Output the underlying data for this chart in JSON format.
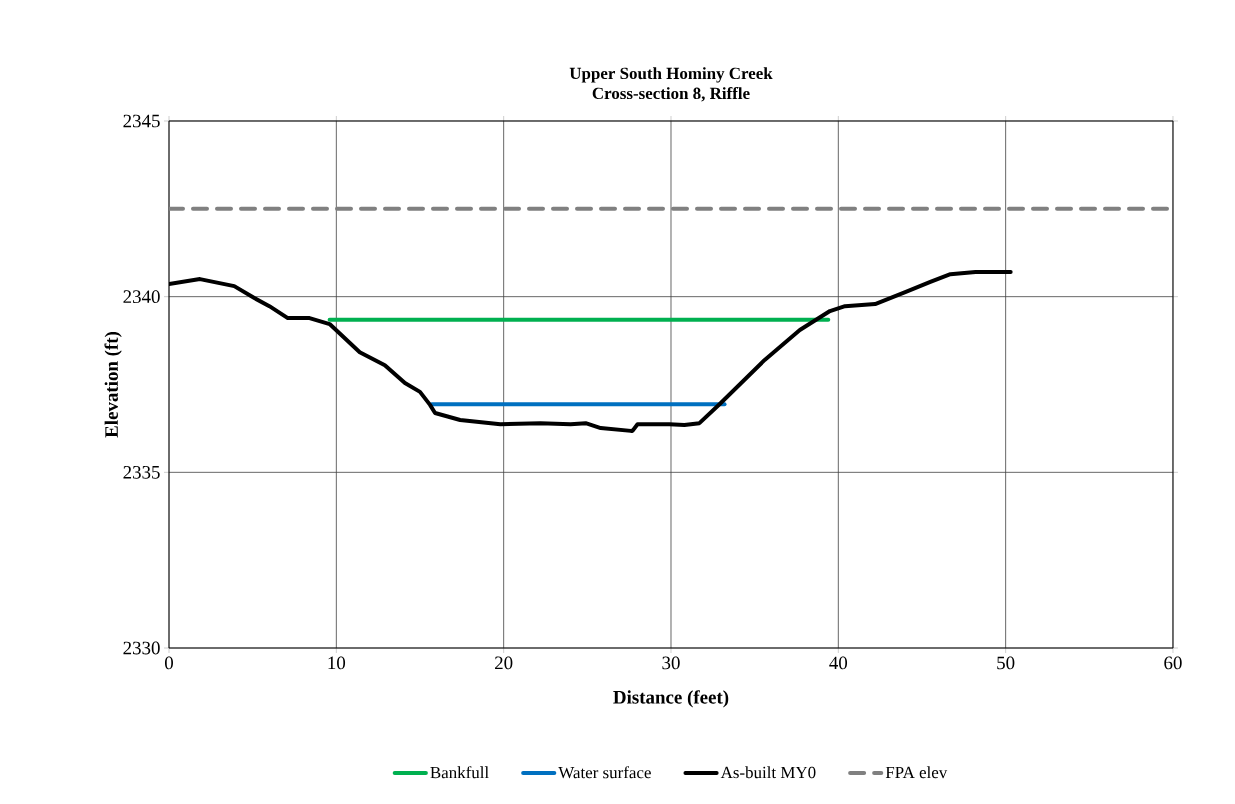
{
  "chart_data": {
    "type": "line",
    "title": "Upper South Hominy Creek",
    "subtitle": "Cross-section 8, Riffle",
    "xlabel": "Distance (feet)",
    "ylabel": "Elevation (ft)",
    "xlim": [
      0,
      60
    ],
    "xticks": [
      0,
      10,
      20,
      30,
      40,
      50,
      60
    ],
    "ylim": [
      2330,
      2345
    ],
    "yticks": [
      2330,
      2335,
      2340,
      2345
    ],
    "grid": true,
    "legend": "bottom",
    "series": [
      {
        "name": "Bankfull",
        "color": "#00b050",
        "line_style": "solid",
        "x": [
          9.6,
          39.4
        ],
        "values": [
          2339.34,
          2339.34
        ]
      },
      {
        "name": "Water surface",
        "color": "#0070c0",
        "line_style": "solid",
        "x": [
          15.7,
          33.2
        ],
        "values": [
          2336.94,
          2336.94
        ]
      },
      {
        "name": "As-built MY0",
        "color": "#000000",
        "line_style": "solid",
        "x": [
          0,
          1.85,
          3.9,
          5.1,
          6.0,
          7.1,
          8.4,
          9.6,
          10.5,
          11.4,
          12.9,
          14.1,
          15.0,
          15.6,
          15.9,
          17.4,
          19.8,
          22.2,
          24.0,
          24.9,
          25.8,
          27.6,
          27.7,
          28.0,
          29.9,
          30.8,
          31.7,
          32.9,
          35.6,
          37.7,
          39.5,
          40.4,
          42.2,
          44.0,
          45.5,
          46.7,
          48.2,
          50.3
        ],
        "values": [
          2340.36,
          2340.5,
          2340.3,
          2339.96,
          2339.73,
          2339.39,
          2339.39,
          2339.22,
          2338.82,
          2338.42,
          2338.05,
          2337.54,
          2337.29,
          2336.92,
          2336.69,
          2336.49,
          2336.37,
          2336.4,
          2336.37,
          2336.4,
          2336.26,
          2336.18,
          2336.18,
          2336.37,
          2336.37,
          2336.35,
          2336.4,
          2336.94,
          2338.2,
          2339.05,
          2339.59,
          2339.73,
          2339.79,
          2340.13,
          2340.42,
          2340.64,
          2340.7,
          2340.7
        ]
      },
      {
        "name": "FPA elev",
        "color": "#808080",
        "line_style": "dashed",
        "x": [
          0,
          60
        ],
        "values": [
          2342.5,
          2342.5
        ]
      }
    ]
  }
}
